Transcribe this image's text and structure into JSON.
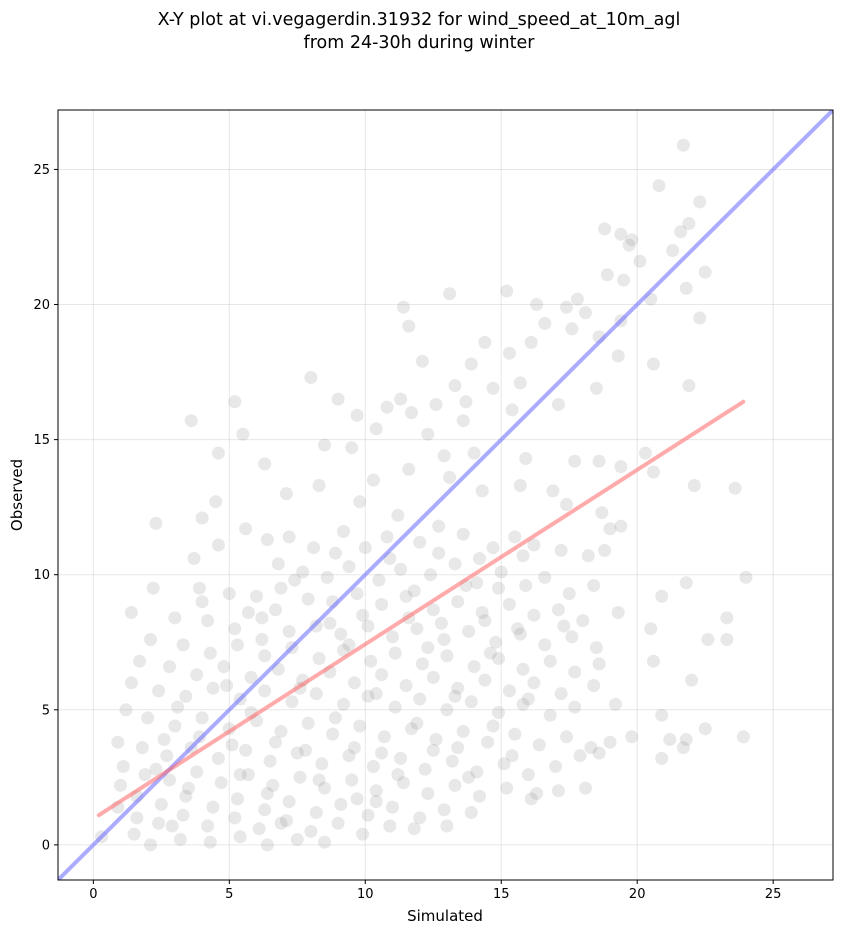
{
  "chart_data": {
    "type": "scatter",
    "title": [
      "X-Y plot at vi.vegagerdin.31932 for wind_speed_at_10m_agl",
      "from 24-30h during winter"
    ],
    "xlabel": "Simulated",
    "ylabel": "Observed",
    "xlim": [
      -1.3,
      27.2
    ],
    "ylim": [
      -1.3,
      27.2
    ],
    "xticks": [
      0,
      5,
      10,
      15,
      20,
      25
    ],
    "yticks": [
      0,
      5,
      10,
      15,
      20,
      25
    ],
    "grid": true,
    "point_color": "#808080",
    "point_opacity": 0.18,
    "lines": [
      {
        "role": "identity",
        "color": "#6666ff",
        "x": [
          -1.3,
          27.2
        ],
        "y": [
          -1.3,
          27.2
        ]
      },
      {
        "role": "fit",
        "color": "#ff6666",
        "x": [
          0.2,
          23.9
        ],
        "y": [
          1.1,
          16.4
        ]
      }
    ],
    "points": [
      [
        21.7,
        25.9
      ],
      [
        20.8,
        24.4
      ],
      [
        22.3,
        23.8
      ],
      [
        21.9,
        23.0
      ],
      [
        18.8,
        22.8
      ],
      [
        19.4,
        22.6
      ],
      [
        19.8,
        22.4
      ],
      [
        21.6,
        22.7
      ],
      [
        21.3,
        22.0
      ],
      [
        19.7,
        22.2
      ],
      [
        20.1,
        21.6
      ],
      [
        22.5,
        21.2
      ],
      [
        18.9,
        21.1
      ],
      [
        19.5,
        20.9
      ],
      [
        21.8,
        20.6
      ],
      [
        13.1,
        20.4
      ],
      [
        15.2,
        20.5
      ],
      [
        20.5,
        20.2
      ],
      [
        17.8,
        20.2
      ],
      [
        16.3,
        20.0
      ],
      [
        11.4,
        19.9
      ],
      [
        17.4,
        19.9
      ],
      [
        18.1,
        19.7
      ],
      [
        19.4,
        19.4
      ],
      [
        22.3,
        19.5
      ],
      [
        11.6,
        19.2
      ],
      [
        17.6,
        19.1
      ],
      [
        16.6,
        19.3
      ],
      [
        14.4,
        18.6
      ],
      [
        18.6,
        18.8
      ],
      [
        15.3,
        18.2
      ],
      [
        16.1,
        18.6
      ],
      [
        20.6,
        17.8
      ],
      [
        19.3,
        18.1
      ],
      [
        12.1,
        17.9
      ],
      [
        8.0,
        17.3
      ],
      [
        13.9,
        17.8
      ],
      [
        15.7,
        17.1
      ],
      [
        21.9,
        17.0
      ],
      [
        18.5,
        16.9
      ],
      [
        13.3,
        17.0
      ],
      [
        14.7,
        16.9
      ],
      [
        11.3,
        16.5
      ],
      [
        5.2,
        16.4
      ],
      [
        9.0,
        16.5
      ],
      [
        13.7,
        16.4
      ],
      [
        10.8,
        16.2
      ],
      [
        12.6,
        16.3
      ],
      [
        15.4,
        16.1
      ],
      [
        17.1,
        16.3
      ],
      [
        9.7,
        15.9
      ],
      [
        11.7,
        16.0
      ],
      [
        5.5,
        15.2
      ],
      [
        3.6,
        15.7
      ],
      [
        13.6,
        15.7
      ],
      [
        8.5,
        14.8
      ],
      [
        9.5,
        14.7
      ],
      [
        12.3,
        15.2
      ],
      [
        10.4,
        15.4
      ],
      [
        6.3,
        14.1
      ],
      [
        4.6,
        14.5
      ],
      [
        12.9,
        14.4
      ],
      [
        14.0,
        14.5
      ],
      [
        15.9,
        14.3
      ],
      [
        17.7,
        14.2
      ],
      [
        18.6,
        14.2
      ],
      [
        19.4,
        14.0
      ],
      [
        20.3,
        14.5
      ],
      [
        20.6,
        13.8
      ],
      [
        22.1,
        13.3
      ],
      [
        23.6,
        13.2
      ],
      [
        8.3,
        13.3
      ],
      [
        10.3,
        13.5
      ],
      [
        11.6,
        13.9
      ],
      [
        13.1,
        13.6
      ],
      [
        7.1,
        13.0
      ],
      [
        9.8,
        12.7
      ],
      [
        11.2,
        12.2
      ],
      [
        14.3,
        13.1
      ],
      [
        15.7,
        13.3
      ],
      [
        16.9,
        13.1
      ],
      [
        17.4,
        12.6
      ],
      [
        18.7,
        12.3
      ],
      [
        19.0,
        11.7
      ],
      [
        19.4,
        11.8
      ],
      [
        4.5,
        12.7
      ],
      [
        4.0,
        12.1
      ],
      [
        2.3,
        11.9
      ],
      [
        5.6,
        11.7
      ],
      [
        6.4,
        11.3
      ],
      [
        7.2,
        11.4
      ],
      [
        8.1,
        11.0
      ],
      [
        9.2,
        11.6
      ],
      [
        10.0,
        11.0
      ],
      [
        10.8,
        11.4
      ],
      [
        12.0,
        11.2
      ],
      [
        12.7,
        11.8
      ],
      [
        13.6,
        11.5
      ],
      [
        14.7,
        11.0
      ],
      [
        15.5,
        11.4
      ],
      [
        16.2,
        11.1
      ],
      [
        17.2,
        10.9
      ],
      [
        18.2,
        10.7
      ],
      [
        18.8,
        10.9
      ],
      [
        4.6,
        11.1
      ],
      [
        3.7,
        10.6
      ],
      [
        6.8,
        10.4
      ],
      [
        7.7,
        10.1
      ],
      [
        8.6,
        9.9
      ],
      [
        9.4,
        10.3
      ],
      [
        10.5,
        9.8
      ],
      [
        11.3,
        10.2
      ],
      [
        12.4,
        10.0
      ],
      [
        13.3,
        10.4
      ],
      [
        14.1,
        9.7
      ],
      [
        15.0,
        10.1
      ],
      [
        15.9,
        9.6
      ],
      [
        16.6,
        9.9
      ],
      [
        17.5,
        9.3
      ],
      [
        18.4,
        9.6
      ],
      [
        21.8,
        9.7
      ],
      [
        24.0,
        9.9
      ],
      [
        2.2,
        9.5
      ],
      [
        3.9,
        9.5
      ],
      [
        5.0,
        9.3
      ],
      [
        6.0,
        9.2
      ],
      [
        6.9,
        9.5
      ],
      [
        7.9,
        9.1
      ],
      [
        8.8,
        9.0
      ],
      [
        9.7,
        9.3
      ],
      [
        10.6,
        8.9
      ],
      [
        11.5,
        9.2
      ],
      [
        12.5,
        8.7
      ],
      [
        13.4,
        9.0
      ],
      [
        14.3,
        8.6
      ],
      [
        15.3,
        8.9
      ],
      [
        16.2,
        8.5
      ],
      [
        17.1,
        8.7
      ],
      [
        18.0,
        8.3
      ],
      [
        19.3,
        8.6
      ],
      [
        20.9,
        9.2
      ],
      [
        1.4,
        8.6
      ],
      [
        3.0,
        8.4
      ],
      [
        4.2,
        8.3
      ],
      [
        5.2,
        8.0
      ],
      [
        6.2,
        8.4
      ],
      [
        7.2,
        7.9
      ],
      [
        8.2,
        8.1
      ],
      [
        9.1,
        7.8
      ],
      [
        10.1,
        8.1
      ],
      [
        11.0,
        7.7
      ],
      [
        11.9,
        8.0
      ],
      [
        12.9,
        7.6
      ],
      [
        13.8,
        7.9
      ],
      [
        14.8,
        7.5
      ],
      [
        15.7,
        7.8
      ],
      [
        16.6,
        7.4
      ],
      [
        17.6,
        7.7
      ],
      [
        18.5,
        7.3
      ],
      [
        20.5,
        8.0
      ],
      [
        23.3,
        8.4
      ],
      [
        2.1,
        7.6
      ],
      [
        3.3,
        7.4
      ],
      [
        4.3,
        7.1
      ],
      [
        5.3,
        7.4
      ],
      [
        6.3,
        7.0
      ],
      [
        7.3,
        7.3
      ],
      [
        8.3,
        6.9
      ],
      [
        9.2,
        7.2
      ],
      [
        10.2,
        6.8
      ],
      [
        11.1,
        7.1
      ],
      [
        12.1,
        6.7
      ],
      [
        13.0,
        7.0
      ],
      [
        14.0,
        6.6
      ],
      [
        14.9,
        6.9
      ],
      [
        15.8,
        6.5
      ],
      [
        16.8,
        6.8
      ],
      [
        17.7,
        6.4
      ],
      [
        18.6,
        6.7
      ],
      [
        20.6,
        6.8
      ],
      [
        22.6,
        7.6
      ],
      [
        23.3,
        7.6
      ],
      [
        1.7,
        6.8
      ],
      [
        2.8,
        6.6
      ],
      [
        3.8,
        6.3
      ],
      [
        4.8,
        6.6
      ],
      [
        5.8,
        6.2
      ],
      [
        6.8,
        6.5
      ],
      [
        7.7,
        6.1
      ],
      [
        8.7,
        6.4
      ],
      [
        9.6,
        6.0
      ],
      [
        10.6,
        6.3
      ],
      [
        11.5,
        5.9
      ],
      [
        12.5,
        6.2
      ],
      [
        13.4,
        5.8
      ],
      [
        14.4,
        6.1
      ],
      [
        15.3,
        5.7
      ],
      [
        16.2,
        6.0
      ],
      [
        17.2,
        5.6
      ],
      [
        18.4,
        5.9
      ],
      [
        22.0,
        6.1
      ],
      [
        1.4,
        6.0
      ],
      [
        2.4,
        5.7
      ],
      [
        3.4,
        5.5
      ],
      [
        4.4,
        5.8
      ],
      [
        5.4,
        5.4
      ],
      [
        6.3,
        5.7
      ],
      [
        7.3,
        5.3
      ],
      [
        8.2,
        5.6
      ],
      [
        9.2,
        5.2
      ],
      [
        10.1,
        5.5
      ],
      [
        11.1,
        5.1
      ],
      [
        12.0,
        5.4
      ],
      [
        13.0,
        5.0
      ],
      [
        13.9,
        5.3
      ],
      [
        14.9,
        4.9
      ],
      [
        15.8,
        5.2
      ],
      [
        16.8,
        4.8
      ],
      [
        17.7,
        5.1
      ],
      [
        19.2,
        5.2
      ],
      [
        1.2,
        5.0
      ],
      [
        2.0,
        4.7
      ],
      [
        3.0,
        4.4
      ],
      [
        4.0,
        4.7
      ],
      [
        5.0,
        4.3
      ],
      [
        6.0,
        4.6
      ],
      [
        6.9,
        4.2
      ],
      [
        7.9,
        4.5
      ],
      [
        8.8,
        4.1
      ],
      [
        9.8,
        4.4
      ],
      [
        10.7,
        4.0
      ],
      [
        11.7,
        4.3
      ],
      [
        12.6,
        3.9
      ],
      [
        13.6,
        4.2
      ],
      [
        14.5,
        3.8
      ],
      [
        15.5,
        4.1
      ],
      [
        16.4,
        3.7
      ],
      [
        17.4,
        4.0
      ],
      [
        18.3,
        3.6
      ],
      [
        19.0,
        3.8
      ],
      [
        19.8,
        4.0
      ],
      [
        20.9,
        4.8
      ],
      [
        21.2,
        3.9
      ],
      [
        21.8,
        3.9
      ],
      [
        22.5,
        4.3
      ],
      [
        23.9,
        4.0
      ],
      [
        0.9,
        3.8
      ],
      [
        1.8,
        3.6
      ],
      [
        2.7,
        3.3
      ],
      [
        3.6,
        3.6
      ],
      [
        4.6,
        3.2
      ],
      [
        5.6,
        3.5
      ],
      [
        6.5,
        3.1
      ],
      [
        7.5,
        3.4
      ],
      [
        8.4,
        3.0
      ],
      [
        9.4,
        3.3
      ],
      [
        10.3,
        2.9
      ],
      [
        11.3,
        3.2
      ],
      [
        12.2,
        2.8
      ],
      [
        13.2,
        3.1
      ],
      [
        14.1,
        2.7
      ],
      [
        15.1,
        3.0
      ],
      [
        16.0,
        2.6
      ],
      [
        17.0,
        2.9
      ],
      [
        17.9,
        3.3
      ],
      [
        18.6,
        3.4
      ],
      [
        20.9,
        3.2
      ],
      [
        21.7,
        3.6
      ],
      [
        1.1,
        2.9
      ],
      [
        1.9,
        2.6
      ],
      [
        2.8,
        2.4
      ],
      [
        3.8,
        2.7
      ],
      [
        4.7,
        2.3
      ],
      [
        5.7,
        2.6
      ],
      [
        6.6,
        2.2
      ],
      [
        7.6,
        2.5
      ],
      [
        8.5,
        2.1
      ],
      [
        9.5,
        2.4
      ],
      [
        10.4,
        2.0
      ],
      [
        11.4,
        2.3
      ],
      [
        12.3,
        1.9
      ],
      [
        13.3,
        2.2
      ],
      [
        14.2,
        1.8
      ],
      [
        15.2,
        2.1
      ],
      [
        16.1,
        1.7
      ],
      [
        17.1,
        2.0
      ],
      [
        18.1,
        2.1
      ],
      [
        16.3,
        1.9
      ],
      [
        1.0,
        2.2
      ],
      [
        1.6,
        1.8
      ],
      [
        2.5,
        1.5
      ],
      [
        3.4,
        1.8
      ],
      [
        4.4,
        1.4
      ],
      [
        5.3,
        1.7
      ],
      [
        6.3,
        1.3
      ],
      [
        7.2,
        1.6
      ],
      [
        8.2,
        1.2
      ],
      [
        9.1,
        1.5
      ],
      [
        10.1,
        1.1
      ],
      [
        11.0,
        1.4
      ],
      [
        12.0,
        1.0
      ],
      [
        12.9,
        1.3
      ],
      [
        13.9,
        1.2
      ],
      [
        0.9,
        1.4
      ],
      [
        1.6,
        1.0
      ],
      [
        2.4,
        0.8
      ],
      [
        3.3,
        1.1
      ],
      [
        4.2,
        0.7
      ],
      [
        5.2,
        1.0
      ],
      [
        6.1,
        0.6
      ],
      [
        7.1,
        0.9
      ],
      [
        8.0,
        0.5
      ],
      [
        9.0,
        0.8
      ],
      [
        9.9,
        0.4
      ],
      [
        10.9,
        0.7
      ],
      [
        11.8,
        0.6
      ],
      [
        13.0,
        0.7
      ],
      [
        0.3,
        0.3
      ],
      [
        1.5,
        0.4
      ],
      [
        2.1,
        0.0
      ],
      [
        3.2,
        0.2
      ],
      [
        4.3,
        0.1
      ],
      [
        5.4,
        0.3
      ],
      [
        6.4,
        0.0
      ],
      [
        7.5,
        0.2
      ],
      [
        8.5,
        0.1
      ],
      [
        4.0,
        9.0
      ],
      [
        6.7,
        8.7
      ],
      [
        9.9,
        8.5
      ],
      [
        12.8,
        8.2
      ],
      [
        15.6,
        8.0
      ],
      [
        3.1,
        5.1
      ],
      [
        5.8,
        4.9
      ],
      [
        8.9,
        4.7
      ],
      [
        11.9,
        4.5
      ],
      [
        14.7,
        4.4
      ],
      [
        2.6,
        3.9
      ],
      [
        5.1,
        3.7
      ],
      [
        7.8,
        3.5
      ],
      [
        10.6,
        3.4
      ],
      [
        13.4,
        3.6
      ],
      [
        6.2,
        7.6
      ],
      [
        9.4,
        7.4
      ],
      [
        12.3,
        7.3
      ],
      [
        14.6,
        7.1
      ],
      [
        3.5,
        2.1
      ],
      [
        6.4,
        1.9
      ],
      [
        9.7,
        1.7
      ],
      [
        4.9,
        5.9
      ],
      [
        7.6,
        5.8
      ],
      [
        10.4,
        5.6
      ],
      [
        13.3,
        5.5
      ],
      [
        16.0,
        5.4
      ],
      [
        11.8,
        9.4
      ],
      [
        13.7,
        9.6
      ],
      [
        14.9,
        9.5
      ],
      [
        12.7,
        10.8
      ],
      [
        14.2,
        10.6
      ],
      [
        15.8,
        10.7
      ],
      [
        10.9,
        10.6
      ],
      [
        8.9,
        10.8
      ],
      [
        7.4,
        9.8
      ],
      [
        5.7,
        8.6
      ],
      [
        8.7,
        8.2
      ],
      [
        11.6,
        8.4
      ],
      [
        14.4,
        8.3
      ],
      [
        17.3,
        8.1
      ],
      [
        3.9,
        4.0
      ],
      [
        6.7,
        3.8
      ],
      [
        9.6,
        3.6
      ],
      [
        12.5,
        3.5
      ],
      [
        15.4,
        3.3
      ],
      [
        2.3,
        2.8
      ],
      [
        5.4,
        2.6
      ],
      [
        8.3,
        2.4
      ],
      [
        11.2,
        2.6
      ],
      [
        13.8,
        2.5
      ],
      [
        2.9,
        0.7
      ],
      [
        6.9,
        0.8
      ],
      [
        10.4,
        1.6
      ]
    ]
  }
}
